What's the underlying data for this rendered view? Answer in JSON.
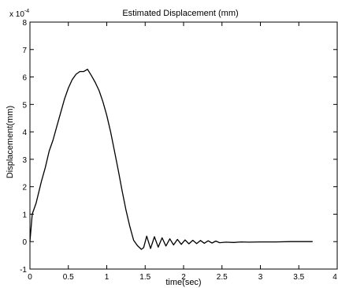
{
  "chart_data": {
    "type": "line",
    "title": "Estimated Displacement (mm)",
    "xlabel": "time(sec)",
    "ylabel": "Displacement(mm)",
    "y_multiplier": "x 10",
    "y_exponent": "-4",
    "xlim": [
      0,
      4
    ],
    "ylim": [
      -1,
      8
    ],
    "grid": false,
    "x_ticks": [
      0,
      0.5,
      1,
      1.5,
      2,
      2.5,
      3,
      3.5,
      4
    ],
    "x_tick_labels": [
      "0",
      "0.5",
      "1",
      "1.5",
      "2",
      "2.5",
      "3",
      "3.5",
      "4"
    ],
    "y_ticks": [
      -1,
      0,
      1,
      2,
      3,
      4,
      5,
      6,
      7,
      8
    ],
    "y_tick_labels": [
      "-1",
      "0",
      "1",
      "2",
      "3",
      "4",
      "5",
      "6",
      "7",
      "8"
    ],
    "series": [
      {
        "color": "#000000",
        "x": [
          0,
          0.03,
          0.08,
          0.15,
          0.2,
          0.25,
          0.3,
          0.35,
          0.4,
          0.45,
          0.5,
          0.55,
          0.6,
          0.65,
          0.7,
          0.75,
          0.8,
          0.85,
          0.9,
          0.95,
          1.0,
          1.05,
          1.1,
          1.15,
          1.2,
          1.25,
          1.3,
          1.35,
          1.4,
          1.45,
          1.48,
          1.52,
          1.57,
          1.62,
          1.67,
          1.72,
          1.77,
          1.82,
          1.87,
          1.92,
          1.97,
          2.02,
          2.07,
          2.12,
          2.17,
          2.22,
          2.27,
          2.32,
          2.37,
          2.42,
          2.47,
          2.55,
          2.65,
          2.75,
          2.85,
          3.0,
          3.2,
          3.4,
          3.68
        ],
        "y": [
          0,
          1.0,
          1.4,
          2.2,
          2.7,
          3.3,
          3.7,
          4.2,
          4.7,
          5.2,
          5.6,
          5.9,
          6.1,
          6.2,
          6.2,
          6.28,
          6.05,
          5.8,
          5.5,
          5.1,
          4.6,
          4.0,
          3.3,
          2.6,
          1.85,
          1.15,
          0.55,
          0.05,
          -0.15,
          -0.28,
          -0.22,
          0.2,
          -0.25,
          0.18,
          -0.2,
          0.14,
          -0.16,
          0.1,
          -0.12,
          0.08,
          -0.1,
          0.06,
          -0.08,
          0.05,
          -0.07,
          0.04,
          -0.06,
          0.03,
          -0.05,
          0.02,
          -0.04,
          -0.02,
          -0.03,
          -0.01,
          -0.02,
          -0.01,
          -0.01,
          0.0,
          0.0
        ]
      }
    ]
  }
}
